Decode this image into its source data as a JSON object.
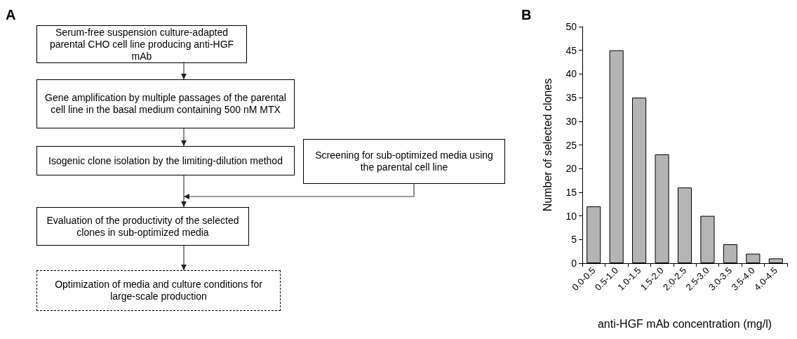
{
  "chart_data": [
    {
      "type": "other",
      "title": "A",
      "annotations": [
        "Serum-free suspension culture-adapted parental CHO cell line producing anti-HGF mAb",
        "Gene amplification by multiple passages of the parental cell line in the basal medium containing 500 nM MTX",
        "Isogenic clone isolation by the limiting-dilution method",
        "Screening for sub-optimized media using the parental cell line",
        "Evaluation of the productivity of the selected clones in sub-optimized media",
        "Optimization of media and culture conditions for large-scale production"
      ]
    },
    {
      "type": "bar",
      "title": "B",
      "xlabel": "anti-HGF mAb concentration (mg/l)",
      "ylabel": "Number of selected clones",
      "categories": [
        "0.0-0.5",
        "0.5-1.0",
        "1.0-1.5",
        "1.5-2.0",
        "2.0-2.5",
        "2.5-3.0",
        "3.0-3.5",
        "3.5-4.0",
        "4.0-4.5"
      ],
      "values": [
        12,
        45,
        35,
        23,
        16,
        10,
        4,
        2,
        1
      ],
      "color": "#b4b4b4",
      "ylim": [
        0,
        50
      ],
      "yticks": [
        0,
        5,
        10,
        15,
        20,
        25,
        30,
        35,
        40,
        45,
        50
      ]
    }
  ]
}
